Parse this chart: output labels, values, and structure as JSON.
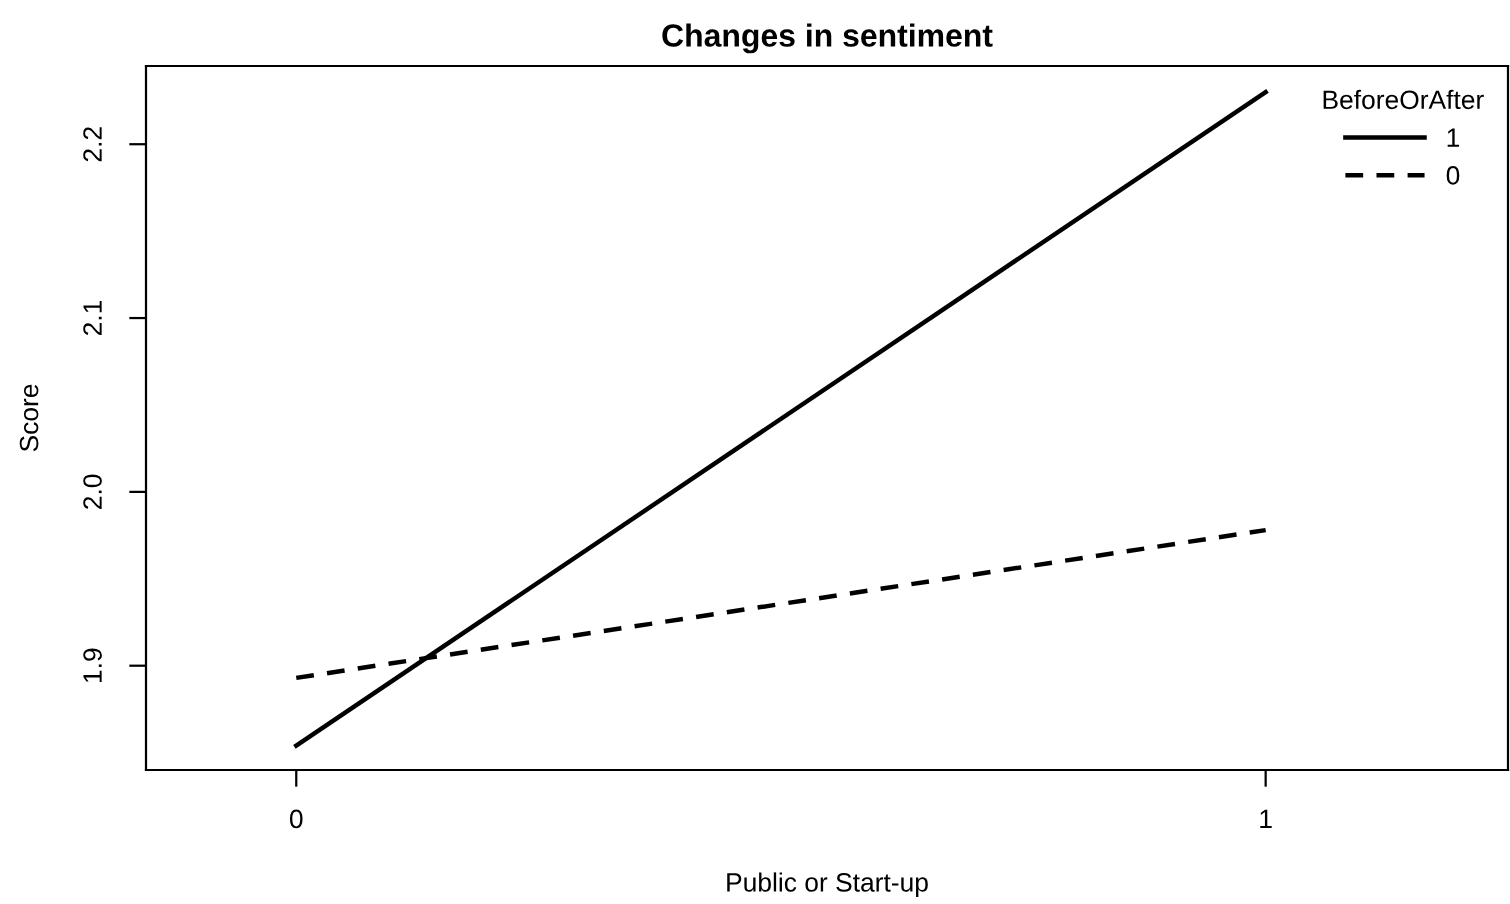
{
  "chart_data": {
    "type": "line",
    "title": "Changes in sentiment",
    "xlabel": "Public or Start-up",
    "ylabel": "Score",
    "legend_title": "BeforeOrAfter",
    "x": [
      0,
      1
    ],
    "series": [
      {
        "name": "1",
        "color": "#000000",
        "line_style": "solid",
        "values": [
          1.854,
          2.23
        ]
      },
      {
        "name": "0",
        "color": "#000000",
        "line_style": "dashed",
        "values": [
          1.893,
          1.978
        ]
      }
    ],
    "xlim": [
      -0.155,
      1.25
    ],
    "xticks": [
      0,
      1
    ],
    "ylim": [
      1.84,
      2.245
    ],
    "yticks": [
      1.9,
      {
        "value": 2.0,
        "label": "2.0"
      },
      2.1,
      2.2
    ],
    "grid": false,
    "legend": "top right",
    "marker": "none"
  }
}
